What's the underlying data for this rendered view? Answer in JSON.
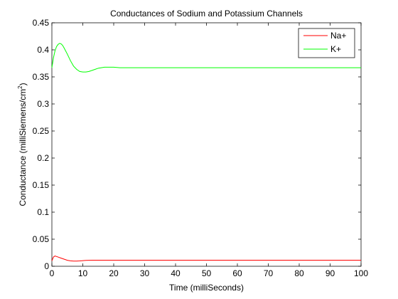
{
  "chart_data": {
    "type": "line",
    "title": "Conductances of Sodium and Potassium Channels",
    "xlabel": "Time (milliSeconds)",
    "ylabel_main": "Conductance (milliSiemens/cm",
    "ylabel_sup": "2",
    "ylabel_end": ")",
    "xlim": [
      0,
      100
    ],
    "ylim": [
      0,
      0.45
    ],
    "xticks": [
      "0",
      "10",
      "20",
      "30",
      "40",
      "50",
      "60",
      "70",
      "80",
      "90",
      "100"
    ],
    "yticks": [
      "0",
      "0.05",
      "0.1",
      "0.15",
      "0.2",
      "0.25",
      "0.3",
      "0.35",
      "0.4",
      "0.45"
    ],
    "grid": false,
    "legend_position": "top-right",
    "series": [
      {
        "name": "Na+",
        "color": "#ff0000",
        "x": [
          0,
          0.5,
          1,
          1.5,
          2,
          3,
          4,
          5,
          6,
          7,
          8,
          9,
          10,
          11,
          12,
          13,
          15,
          20,
          30,
          40,
          50,
          60,
          70,
          80,
          90,
          100
        ],
        "y": [
          0.01,
          0.017,
          0.019,
          0.018,
          0.017,
          0.015,
          0.013,
          0.011,
          0.01,
          0.0095,
          0.0095,
          0.0098,
          0.0103,
          0.0108,
          0.011,
          0.0112,
          0.0112,
          0.0111,
          0.0111,
          0.0111,
          0.0111,
          0.0111,
          0.0111,
          0.0111,
          0.0111,
          0.0111
        ]
      },
      {
        "name": "K+",
        "color": "#00ff00",
        "x": [
          0,
          0.5,
          1,
          1.5,
          2,
          2.5,
          3,
          3.5,
          4,
          5,
          6,
          7,
          8,
          9,
          10,
          11,
          12,
          13,
          14,
          15,
          16,
          17,
          18,
          19,
          20,
          22,
          25,
          30,
          40,
          50,
          60,
          70,
          80,
          90,
          100
        ],
        "y": [
          0.367,
          0.385,
          0.398,
          0.406,
          0.41,
          0.412,
          0.411,
          0.408,
          0.403,
          0.392,
          0.38,
          0.37,
          0.364,
          0.36,
          0.359,
          0.359,
          0.36,
          0.362,
          0.364,
          0.366,
          0.367,
          0.368,
          0.368,
          0.368,
          0.368,
          0.367,
          0.367,
          0.367,
          0.367,
          0.367,
          0.367,
          0.367,
          0.367,
          0.367,
          0.367
        ]
      }
    ]
  }
}
